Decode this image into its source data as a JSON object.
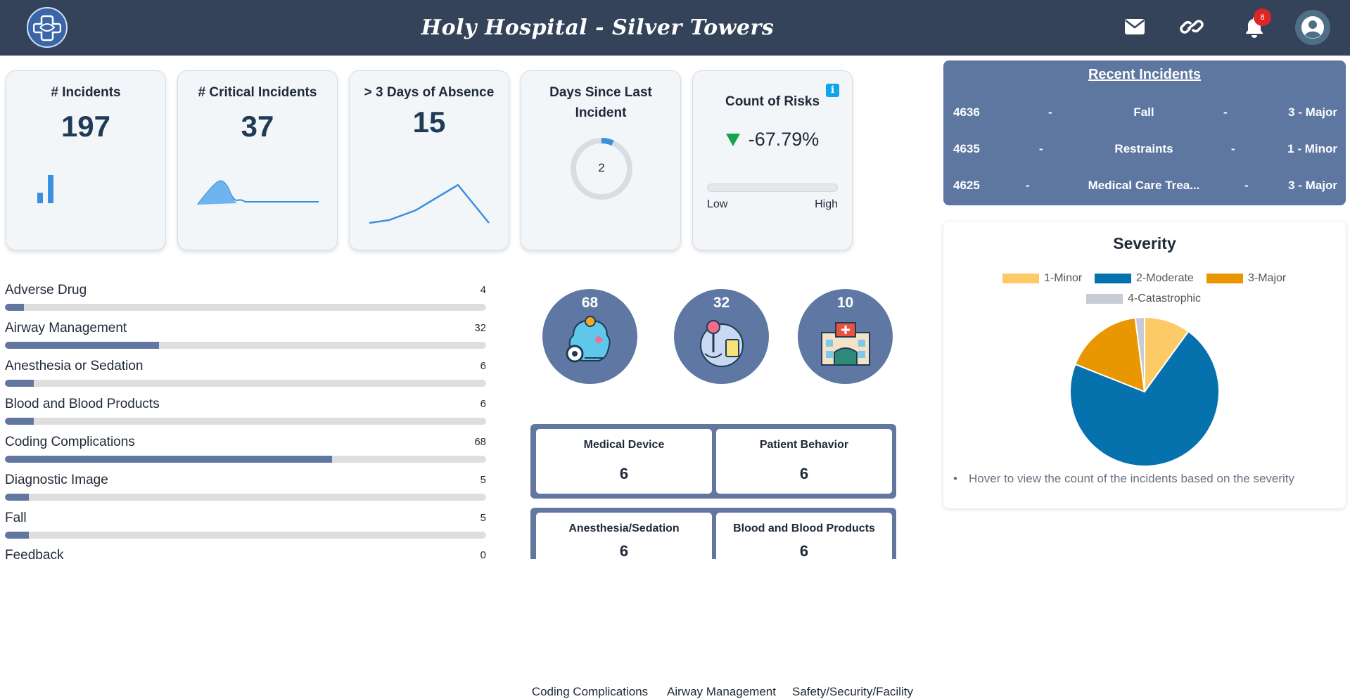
{
  "header": {
    "title": "Holy Hospital - Silver Towers",
    "notification_count": "8",
    "icons": [
      "plus-logo-icon",
      "mail-icon",
      "link-icon",
      "bell-icon",
      "user-avatar-icon"
    ]
  },
  "kpis": {
    "incidents": {
      "label": "# Incidents",
      "value": "197"
    },
    "critical": {
      "label": "# Critical Incidents",
      "value": "37"
    },
    "absence": {
      "label": "> 3 Days of Absence",
      "value": "15"
    },
    "days_since": {
      "label": "Days Since Last Incident",
      "value": "2"
    },
    "risks": {
      "label": "Count of Risks",
      "change": "-67.79%",
      "low_label": "Low",
      "high_label": "High"
    }
  },
  "recent": {
    "title": "Recent Incidents",
    "separator": "-",
    "rows": [
      {
        "id": "4636",
        "type": "Fall",
        "severity": "3 - Major"
      },
      {
        "id": "4635",
        "type": "Restraints",
        "severity": "1 - Minor"
      },
      {
        "id": "4625",
        "type": "Medical Care Trea...",
        "severity": "3 - Major"
      }
    ]
  },
  "categories": [
    {
      "name": "Adverse Drug",
      "count": "4",
      "fraction": 0.04
    },
    {
      "name": "Airway Management",
      "count": "32",
      "fraction": 0.32
    },
    {
      "name": "Anesthesia or Sedation",
      "count": "6",
      "fraction": 0.06
    },
    {
      "name": "Blood and Blood Products",
      "count": "6",
      "fraction": 0.06
    },
    {
      "name": "Coding Complications",
      "count": "68",
      "fraction": 0.68
    },
    {
      "name": "Diagnostic Image",
      "count": "5",
      "fraction": 0.05
    },
    {
      "name": "Fall",
      "count": "5",
      "fraction": 0.05
    },
    {
      "name": "Feedback",
      "count": "0",
      "fraction": 0
    }
  ],
  "top_categories": [
    {
      "count": "68",
      "label": "Coding Complications",
      "icon": "coding-complications-icon"
    },
    {
      "count": "32",
      "label": "Airway Management",
      "icon": "airway-management-icon"
    },
    {
      "count": "10",
      "label": "Safety/Security/Facility",
      "icon": "hospital-building-icon"
    }
  ],
  "boxes": [
    {
      "label": "Medical Device",
      "value": "6"
    },
    {
      "label": "Patient Behavior",
      "value": "6"
    },
    {
      "label": "Anesthesia/Sedation",
      "value": "6"
    },
    {
      "label": "Blood and Blood Products",
      "value": "6"
    }
  ],
  "severity": {
    "title": "Severity",
    "note": "Hover to view the count of the incidents based on the severity",
    "colors": {
      "minor": "#fdca68",
      "moderate": "#0571ad",
      "major": "#e89700",
      "catastrophic": "#c6cbd6"
    }
  },
  "chart_data": [
    {
      "type": "pie",
      "title": "Severity",
      "categories": [
        "1-Minor",
        "2-Moderate",
        "3-Major",
        "4-Catastrophic"
      ],
      "values": [
        10,
        71,
        17,
        2
      ],
      "legend": "top"
    }
  ]
}
